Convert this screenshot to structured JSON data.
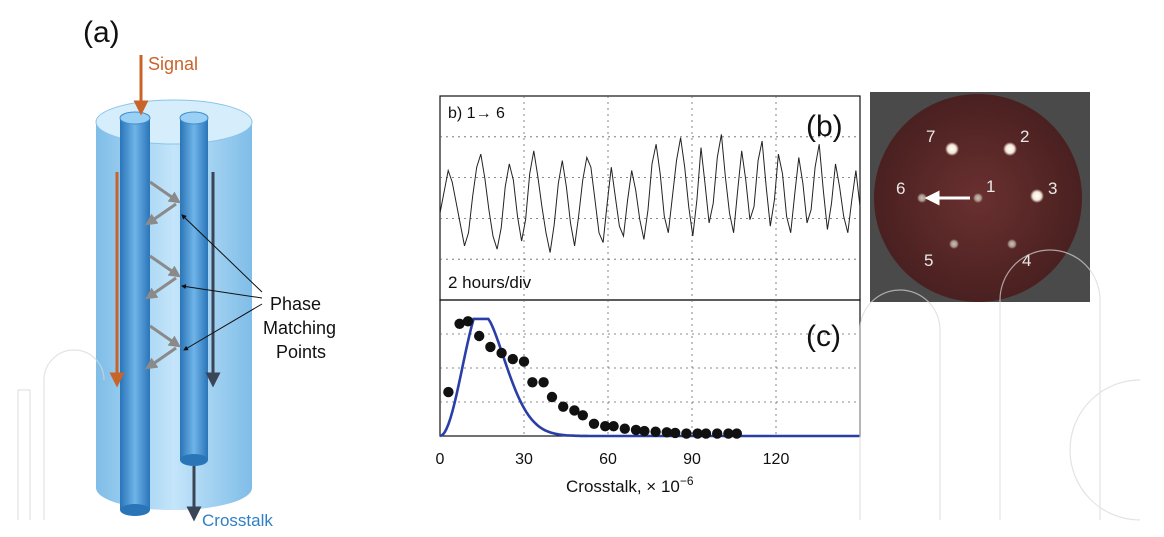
{
  "panel_a": {
    "label": "(a)",
    "signal": "Signal",
    "annotation": [
      "Phase",
      "Matching",
      "Points"
    ],
    "crosstalk": "Crosstalk",
    "colors": {
      "signal": "#c8632a",
      "crosstalk_text": "#2f80c4",
      "fiber": "#3d8fd1",
      "cladding": "#a9d6f3",
      "dark_arrow": "#3a4556"
    }
  },
  "panel_b": {
    "inset_label": "b) 1→ 6",
    "panel_label": "(b)",
    "time_scale": "2 hours/div"
  },
  "panel_c": {
    "panel_label": "(c)"
  },
  "shared_axis": {
    "xlabel_prefix": "Crosstalk, × 10",
    "xlabel_exp": "−6",
    "xticks": [
      "0",
      "30",
      "60",
      "90",
      "120"
    ]
  },
  "photo": {
    "core_labels": [
      "7",
      "2",
      "6",
      "1",
      "3",
      "5",
      "4"
    ],
    "colors": {
      "bg": "#4a4a4a",
      "disk": "#5a2a2a"
    }
  },
  "chart_data": [
    {
      "type": "line",
      "title": "",
      "xlabel": "",
      "ylabel": "",
      "grid": true,
      "description_values_approx": true,
      "series": [
        {
          "values": [
            0.42,
            0.55,
            0.68,
            0.61,
            0.48,
            0.35,
            0.22,
            0.3,
            0.52,
            0.7,
            0.78,
            0.63,
            0.44,
            0.28,
            0.2,
            0.33,
            0.58,
            0.72,
            0.62,
            0.4,
            0.25,
            0.38,
            0.66,
            0.8,
            0.64,
            0.46,
            0.3,
            0.18,
            0.35,
            0.6,
            0.74,
            0.58,
            0.36,
            0.22,
            0.4,
            0.62,
            0.76,
            0.7,
            0.5,
            0.3,
            0.24,
            0.48,
            0.7,
            0.52,
            0.34,
            0.28,
            0.5,
            0.68,
            0.56,
            0.38,
            0.26,
            0.44,
            0.72,
            0.84,
            0.66,
            0.4,
            0.3,
            0.52,
            0.74,
            0.88,
            0.7,
            0.46,
            0.28,
            0.5,
            0.82,
            0.6,
            0.36,
            0.48,
            0.76,
            0.9,
            0.64,
            0.42,
            0.3,
            0.56,
            0.8,
            0.62,
            0.38,
            0.46,
            0.74,
            0.86,
            0.58,
            0.34,
            0.5,
            0.78,
            0.66,
            0.4,
            0.3,
            0.54,
            0.76,
            0.6,
            0.36,
            0.44,
            0.7,
            0.84,
            0.56,
            0.32,
            0.48,
            0.72,
            0.58,
            0.4,
            0.3,
            0.5,
            0.68,
            0.46
          ]
        }
      ]
    },
    {
      "type": "scatter",
      "title": "",
      "xlabel": "Crosstalk, × 10⁻⁶",
      "ylabel": "",
      "xlim": [
        0,
        150
      ],
      "ylim": [
        0,
        1
      ],
      "grid": true,
      "points": [
        {
          "x": 3,
          "y": 0.36
        },
        {
          "x": 7,
          "y": 0.92
        },
        {
          "x": 10,
          "y": 0.94
        },
        {
          "x": 14,
          "y": 0.82
        },
        {
          "x": 18,
          "y": 0.73
        },
        {
          "x": 22,
          "y": 0.68
        },
        {
          "x": 26,
          "y": 0.63
        },
        {
          "x": 30,
          "y": 0.61
        },
        {
          "x": 33,
          "y": 0.44
        },
        {
          "x": 37,
          "y": 0.44
        },
        {
          "x": 40,
          "y": 0.32
        },
        {
          "x": 44,
          "y": 0.24
        },
        {
          "x": 48,
          "y": 0.21
        },
        {
          "x": 51,
          "y": 0.17
        },
        {
          "x": 55,
          "y": 0.1
        },
        {
          "x": 59,
          "y": 0.08
        },
        {
          "x": 62,
          "y": 0.08
        },
        {
          "x": 66,
          "y": 0.06
        },
        {
          "x": 70,
          "y": 0.05
        },
        {
          "x": 73,
          "y": 0.04
        },
        {
          "x": 77,
          "y": 0.035
        },
        {
          "x": 81,
          "y": 0.03
        },
        {
          "x": 84,
          "y": 0.025
        },
        {
          "x": 88,
          "y": 0.02
        },
        {
          "x": 92,
          "y": 0.02
        },
        {
          "x": 95,
          "y": 0.02
        },
        {
          "x": 99,
          "y": 0.02
        },
        {
          "x": 103,
          "y": 0.02
        },
        {
          "x": 106,
          "y": 0.02
        }
      ],
      "fit_curve": {
        "type": "line",
        "color": "#2a3ea8"
      }
    }
  ]
}
